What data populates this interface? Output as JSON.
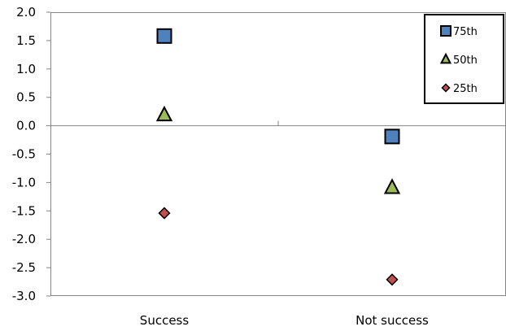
{
  "chart_data": {
    "type": "scatter",
    "categories": [
      "Success",
      "Not success"
    ],
    "series": [
      {
        "name": "75th",
        "values": [
          1.58,
          -0.19
        ],
        "marker": "square",
        "color": "#4F81BD"
      },
      {
        "name": "50th",
        "values": [
          0.19,
          -1.09
        ],
        "marker": "triangle",
        "color": "#9BBB59"
      },
      {
        "name": "25th",
        "values": [
          -1.54,
          -2.71
        ],
        "marker": "diamond",
        "color": "#C0504D"
      }
    ],
    "yticks": [
      "2.0",
      "1.5",
      "1.0",
      "0.5",
      "0.0",
      "-0.5",
      "-1.0",
      "-1.5",
      "-2.0",
      "-2.5",
      "-3.0"
    ],
    "ylim": [
      -3,
      2
    ],
    "grid": false,
    "legend_position": "top-right",
    "title": "",
    "xlabel": "",
    "ylabel": ""
  }
}
